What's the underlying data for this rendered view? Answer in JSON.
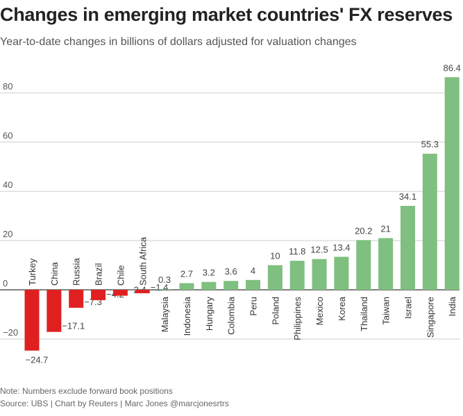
{
  "title": "Changes in emerging market countries' FX reserves",
  "subtitle": "Year-to-date changes in billions of dollars adjusted for valuation changes",
  "note": "Note: Numbers exclude forward book positions",
  "source": "Source: UBS | Chart by Reuters | Marc Jones @marcjonesrtrs",
  "colors": {
    "positive": "#7fbf7f",
    "negative": "#e02020",
    "grid": "#cccccc",
    "axis": "#333333"
  },
  "chart_data": {
    "type": "bar",
    "title": "Changes in emerging market countries' FX reserves",
    "ylabel": "",
    "xlabel": "",
    "ylim": [
      -24.7,
      86.4
    ],
    "yticks": [
      -20,
      0,
      20,
      40,
      60,
      80
    ],
    "ytick_labels": [
      "−20",
      "0",
      "20",
      "40",
      "60",
      "80"
    ],
    "categories": [
      "Turkey",
      "China",
      "Russia",
      "Brazil",
      "Chile",
      "South Africa",
      "Malaysia",
      "Indonesia",
      "Hungary",
      "Colombia",
      "Peru",
      "Poland",
      "Philippines",
      "Mexico",
      "Korea",
      "Thailand",
      "Taiwan",
      "Israel",
      "Singapore",
      "India"
    ],
    "values": [
      -24.7,
      -17.1,
      -7.3,
      -4.2,
      -2.4,
      -1.4,
      0.3,
      2.7,
      3.2,
      3.6,
      4,
      10,
      11.8,
      12.5,
      13.4,
      20.2,
      21,
      34.1,
      55.3,
      86.4
    ],
    "value_labels": [
      "−24.7",
      "−17.1",
      "−7.3",
      "−4.2",
      "−2.4",
      "−1.4",
      "0.3",
      "2.7",
      "3.2",
      "3.6",
      "4",
      "10",
      "11.8",
      "12.5",
      "13.4",
      "20.2",
      "21",
      "34.1",
      "55.3",
      "86.4"
    ]
  }
}
